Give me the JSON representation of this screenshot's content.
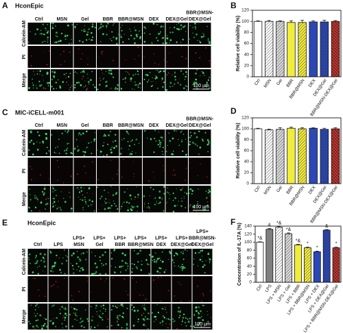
{
  "image_panels": [
    {
      "label": "A",
      "title": "HconEpic",
      "columns": [
        [
          "Ctrl"
        ],
        [
          "MSN"
        ],
        [
          "Gel"
        ],
        [
          "BBR"
        ],
        [
          "BBR@MSN"
        ],
        [
          "DEX"
        ],
        [
          "DEX@Gel"
        ],
        [
          "BBR@MSN-",
          "DEX@Gel"
        ]
      ],
      "rows": [
        "Calcein-AM",
        "PI",
        "Merge"
      ],
      "scale_bar": "100 μm"
    },
    {
      "label": "C",
      "title": "MIC-iCELL-m001",
      "columns": [
        [
          "Ctrl"
        ],
        [
          "MSN"
        ],
        [
          "Gel"
        ],
        [
          "BBR"
        ],
        [
          "BBR@MSN"
        ],
        [
          "DEX"
        ],
        [
          "DEX@Gel"
        ],
        [
          "BBR@MSN-",
          "DEX@Gel"
        ]
      ],
      "rows": [
        "Calcein-AM",
        "PI",
        "Merge"
      ],
      "scale_bar": "100 μm"
    },
    {
      "label": "E",
      "title": "HconEpic",
      "columns": [
        [
          "Ctrl"
        ],
        [
          "LPS"
        ],
        [
          "LPS+",
          "MSN"
        ],
        [
          "LPS+",
          "Gel"
        ],
        [
          "LPS+",
          "BBR"
        ],
        [
          "LPS+",
          "BBR@MSN"
        ],
        [
          "LPS+",
          "DEX"
        ],
        [
          "LPS+",
          "DEX@Gel"
        ],
        [
          "LPS+",
          "BBR@MSN-",
          "DEX@Gel"
        ]
      ],
      "rows": [
        "Calcein-AM",
        "PI",
        "Merge"
      ],
      "scale_bar": "100 μm"
    }
  ],
  "chart_data": [
    {
      "type": "bar",
      "label": "B",
      "ylabel": "Relative cell viability (%)",
      "categories": [
        "Ctrl",
        "MSN",
        "Gel",
        "BBR",
        "BBR@MSN",
        "DEX",
        "DEX@Gel",
        "BBR@MSN-DEX@Gel"
      ],
      "values": [
        100,
        100,
        100,
        98,
        98,
        99,
        99,
        100
      ],
      "errors": [
        1,
        1.5,
        1,
        3,
        4,
        2,
        3,
        1.5
      ],
      "colors": [
        "#ffffff",
        "#ffffff",
        "#d9d9d9",
        "#f2ec3a",
        "#f2ec3a",
        "#2b48b5",
        "#2b48b5",
        "#e5332a"
      ],
      "hatch": [
        "none",
        "diagonal",
        "diagonal",
        "none",
        "diagonal",
        "none",
        "diagonal",
        "cross"
      ],
      "ylim": [
        0,
        120
      ],
      "yticks": [
        0,
        20,
        40,
        60,
        80,
        100,
        120
      ]
    },
    {
      "type": "bar",
      "label": "D",
      "ylabel": "Relative cell viability (%)",
      "categories": [
        "Ctrl",
        "MSN",
        "Gel",
        "BBR",
        "BBR@MSN",
        "DEX",
        "DEX@Gel",
        "BBR@MSN-DEX@Gel"
      ],
      "values": [
        100,
        98,
        99,
        101,
        100,
        101,
        99,
        100
      ],
      "errors": [
        1,
        1.5,
        3,
        2,
        2,
        1,
        2,
        2
      ],
      "colors": [
        "#ffffff",
        "#ffffff",
        "#d9d9d9",
        "#f2ec3a",
        "#f2ec3a",
        "#2b48b5",
        "#2b48b5",
        "#e5332a"
      ],
      "hatch": [
        "none",
        "diagonal",
        "diagonal",
        "none",
        "diagonal",
        "none",
        "diagonal",
        "cross"
      ],
      "ylim": [
        0,
        120
      ],
      "yticks": [
        0,
        20,
        40,
        60,
        80,
        100,
        120
      ]
    },
    {
      "type": "bar",
      "label": "F",
      "ylabel": "Concentration of IL-17A (%)",
      "categories": [
        "Ctrl",
        "LPS",
        "LPS + MSN",
        "LPS + Gel",
        "LPS + BBR",
        "LPS + BBR@MSN",
        "LPS + DEX",
        "LPS + DEX@Gel",
        "LPS + BBR@MSN-DEX@Gel"
      ],
      "values": [
        100,
        132,
        137,
        121,
        93,
        86,
        76,
        130,
        86
      ],
      "errors": [
        1,
        2,
        2,
        2,
        1.5,
        1.5,
        1.5,
        1.5,
        1.5
      ],
      "annotations": [
        "*&",
        "&",
        "*&",
        "*&",
        "*&",
        "*",
        "*",
        "&",
        "*"
      ],
      "colors": [
        "#ffffff",
        "#7f7f7f",
        "#ffffff",
        "#d9d9d9",
        "#f2ec3a",
        "#f2ec3a",
        "#2b48b5",
        "#2b48b5",
        "#e5332a"
      ],
      "hatch": [
        "none",
        "none",
        "diagonal",
        "diagonal",
        "none",
        "diagonal",
        "none",
        "diagonal",
        "cross"
      ],
      "ylim": [
        0,
        140
      ],
      "yticks": [
        0,
        20,
        40,
        60,
        80,
        100,
        120,
        140
      ]
    }
  ]
}
